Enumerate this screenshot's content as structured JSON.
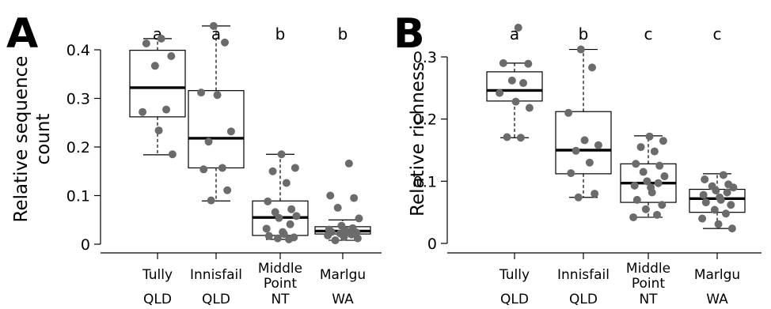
{
  "chart_data": [
    {
      "type": "box",
      "panel_label": "A",
      "ylabel_lines": [
        "Relative sequence",
        "count"
      ],
      "ylim": [
        0,
        0.47
      ],
      "yticks": [
        0,
        0.1,
        0.2,
        0.3,
        0.4
      ],
      "ytick_labels": [
        "0",
        "0.1",
        "0.2",
        "0.3",
        "0.4"
      ],
      "groups": [
        {
          "label_lines": [
            "Tully",
            "QLD"
          ],
          "significance": "a",
          "q1": 0.262,
          "median": 0.322,
          "q3": 0.399,
          "whisker_low": 0.184,
          "whisker_high": 0.423,
          "points": [
            0.423,
            0.413,
            0.387,
            0.367,
            0.277,
            0.272,
            0.234,
            0.185
          ]
        },
        {
          "label_lines": [
            "Innisfail",
            "QLD"
          ],
          "significance": "a",
          "q1": 0.157,
          "median": 0.218,
          "q3": 0.316,
          "whisker_low": 0.089,
          "whisker_high": 0.449,
          "points": [
            0.449,
            0.415,
            0.312,
            0.307,
            0.232,
            0.211,
            0.157,
            0.154,
            0.111,
            0.09
          ]
        },
        {
          "label_lines": [
            "Middle",
            "Point",
            "NT"
          ],
          "significance": "b",
          "q1": 0.018,
          "median": 0.055,
          "q3": 0.089,
          "whisker_low": 0.01,
          "whisker_high": 0.185,
          "points": [
            0.185,
            0.157,
            0.15,
            0.126,
            0.088,
            0.072,
            0.066,
            0.058,
            0.054,
            0.041,
            0.032,
            0.025,
            0.021,
            0.017,
            0.014,
            0.012,
            0.01
          ]
        },
        {
          "label_lines": [
            "Marlgu",
            "WA"
          ],
          "significance": "b",
          "q1": 0.021,
          "median": 0.027,
          "q3": 0.036,
          "whisker_low": 0.008,
          "whisker_high": 0.05,
          "points": [
            0.166,
            0.1,
            0.095,
            0.075,
            0.053,
            0.038,
            0.033,
            0.03,
            0.028,
            0.026,
            0.025,
            0.024,
            0.022,
            0.02,
            0.018,
            0.015,
            0.012,
            0.008
          ]
        }
      ]
    },
    {
      "type": "box",
      "panel_label": "B",
      "ylabel_lines": [
        "Relative richness"
      ],
      "ylim": [
        0,
        0.36
      ],
      "yticks": [
        0,
        0.1,
        0.2,
        0.3
      ],
      "ytick_labels": [
        "0",
        "0.1",
        "0.2",
        "0.3"
      ],
      "groups": [
        {
          "label_lines": [
            "Tully",
            "QLD"
          ],
          "significance": "a",
          "q1": 0.229,
          "median": 0.246,
          "q3": 0.276,
          "whisker_low": 0.17,
          "whisker_high": 0.29,
          "points": [
            0.347,
            0.29,
            0.289,
            0.262,
            0.258,
            0.242,
            0.228,
            0.218,
            0.171,
            0.17
          ]
        },
        {
          "label_lines": [
            "Innisfail",
            "QLD"
          ],
          "significance": "b",
          "q1": 0.112,
          "median": 0.15,
          "q3": 0.212,
          "whisker_low": 0.074,
          "whisker_high": 0.312,
          "points": [
            0.312,
            0.283,
            0.21,
            0.166,
            0.158,
            0.149,
            0.13,
            0.113,
            0.08,
            0.074
          ]
        },
        {
          "label_lines": [
            "Middle",
            "Point",
            "NT"
          ],
          "significance": "c",
          "q1": 0.066,
          "median": 0.097,
          "q3": 0.128,
          "whisker_low": 0.042,
          "whisker_high": 0.173,
          "points": [
            0.172,
            0.165,
            0.155,
            0.148,
            0.128,
            0.125,
            0.115,
            0.108,
            0.1,
            0.097,
            0.093,
            0.09,
            0.082,
            0.07,
            0.062,
            0.055,
            0.046,
            0.042
          ]
        },
        {
          "label_lines": [
            "Marlgu",
            "WA"
          ],
          "significance": "c",
          "q1": 0.05,
          "median": 0.072,
          "q3": 0.087,
          "whisker_low": 0.024,
          "whisker_high": 0.112,
          "points": [
            0.11,
            0.103,
            0.095,
            0.092,
            0.09,
            0.085,
            0.082,
            0.078,
            0.074,
            0.07,
            0.066,
            0.062,
            0.054,
            0.048,
            0.04,
            0.031,
            0.024
          ]
        }
      ]
    }
  ]
}
